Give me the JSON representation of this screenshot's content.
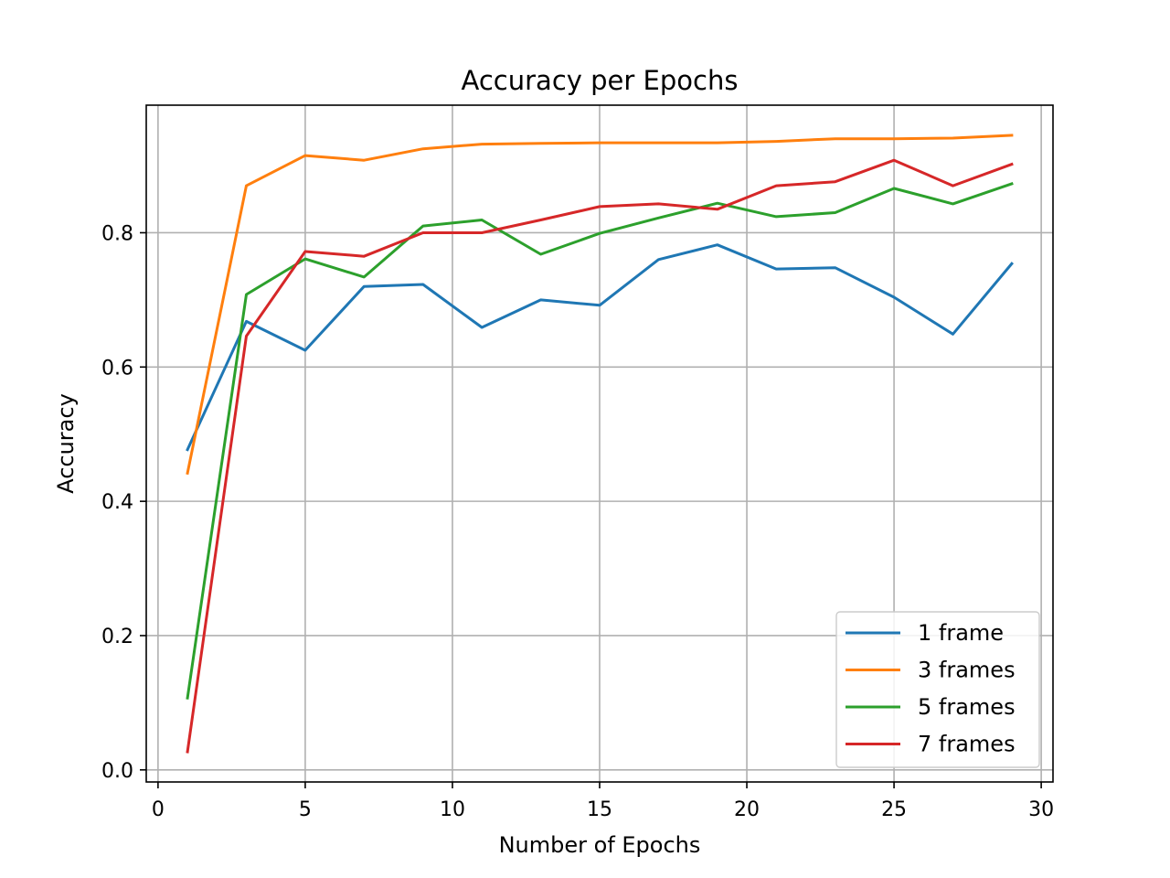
{
  "chart_data": {
    "type": "line",
    "title": "Accuracy per Epochs",
    "xlabel": "Number of Epochs",
    "ylabel": "Accuracy",
    "xlim": [
      -0.4,
      30.4
    ],
    "ylim": [
      -0.018,
      0.99
    ],
    "xticks": [
      0,
      5,
      10,
      15,
      20,
      25,
      30
    ],
    "xtick_labels": [
      "0",
      "5",
      "10",
      "15",
      "20",
      "25",
      "30"
    ],
    "yticks": [
      0.0,
      0.2,
      0.4,
      0.6,
      0.8
    ],
    "ytick_labels": [
      "0.0",
      "0.2",
      "0.4",
      "0.6",
      "0.8"
    ],
    "grid": true,
    "legend_position": "lower-right",
    "x": [
      1,
      3,
      5,
      7,
      9,
      11,
      13,
      15,
      17,
      19,
      21,
      23,
      25,
      27,
      29
    ],
    "series": [
      {
        "name": "1 frame",
        "color": "#1f77b4",
        "values": [
          0.477,
          0.668,
          0.625,
          0.72,
          0.723,
          0.659,
          0.7,
          0.692,
          0.76,
          0.782,
          0.746,
          0.748,
          0.704,
          0.649,
          0.754
        ]
      },
      {
        "name": "3 frames",
        "color": "#ff7f0e",
        "values": [
          0.442,
          0.87,
          0.915,
          0.908,
          0.925,
          0.932,
          0.933,
          0.934,
          0.934,
          0.934,
          0.936,
          0.94,
          0.94,
          0.941,
          0.945
        ]
      },
      {
        "name": "5 frames",
        "color": "#2ca02c",
        "values": [
          0.107,
          0.708,
          0.761,
          0.734,
          0.81,
          0.819,
          0.768,
          0.799,
          0.822,
          0.844,
          0.824,
          0.83,
          0.866,
          0.843,
          0.873
        ]
      },
      {
        "name": "7 frames",
        "color": "#d62728",
        "values": [
          0.027,
          0.646,
          0.772,
          0.765,
          0.8,
          0.8,
          0.819,
          0.839,
          0.843,
          0.835,
          0.87,
          0.876,
          0.908,
          0.87,
          0.902
        ]
      }
    ]
  }
}
